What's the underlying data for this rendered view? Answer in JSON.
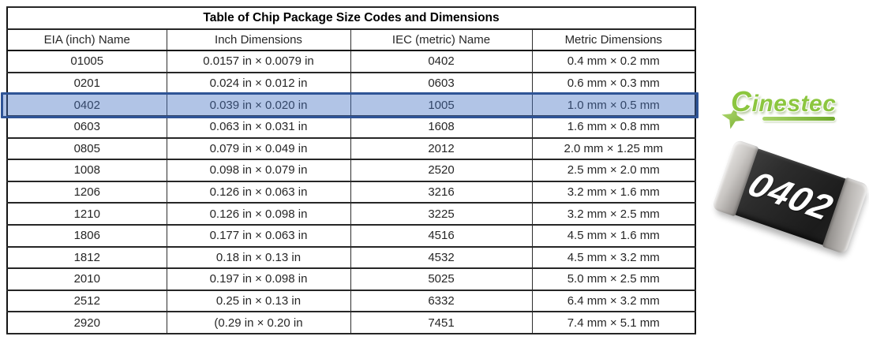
{
  "table": {
    "title": "Table of Chip Package Size Codes and Dimensions",
    "columns": [
      "EIA (inch) Name",
      "Inch Dimensions",
      "IEC (metric) Name",
      "Metric Dimensions"
    ],
    "rows": [
      [
        "01005",
        "0.0157 in × 0.0079 in",
        "0402",
        "0.4 mm × 0.2 mm"
      ],
      [
        "0201",
        "0.024 in × 0.012 in",
        "0603",
        "0.6 mm × 0.3 mm"
      ],
      [
        "0402",
        "0.039 in × 0.020 in",
        "1005",
        "1.0 mm × 0.5 mm"
      ],
      [
        "0603",
        "0.063 in × 0.031 in",
        "1608",
        "1.6 mm × 0.8 mm"
      ],
      [
        "0805",
        "0.079 in × 0.049 in",
        "2012",
        "2.0 mm × 1.25 mm"
      ],
      [
        "1008",
        "0.098 in × 0.079 in",
        "2520",
        "2.5 mm × 2.0 mm"
      ],
      [
        "1206",
        "0.126 in × 0.063 in",
        "3216",
        "3.2 mm × 1.6 mm"
      ],
      [
        "1210",
        "0.126 in × 0.098 in",
        "3225",
        "3.2 mm × 2.5 mm"
      ],
      [
        "1806",
        "0.177 in × 0.063 in",
        "4516",
        "4.5 mm × 1.6 mm"
      ],
      [
        "1812",
        "0.18 in × 0.13 in",
        "4532",
        "4.5 mm × 3.2 mm"
      ],
      [
        "2010",
        "0.197 in × 0.098 in",
        "5025",
        "5.0 mm × 2.5 mm"
      ],
      [
        "2512",
        "0.25 in × 0.13 in",
        "6332",
        "6.4 mm × 3.2 mm"
      ],
      [
        "2920",
        "(0.29 in × 0.20 in",
        "7451",
        "7.4 mm × 5.1 mm"
      ]
    ],
    "highlight": {
      "row_index": 2,
      "fill": "#4472c4",
      "fill_rgba": "rgba(68,114,196,0.42)",
      "border": "#2f5496"
    }
  },
  "logo": {
    "text_initial": "C",
    "text_rest": "inestec",
    "color": "#8cc63f"
  },
  "chip_photo": {
    "label": "0402",
    "body_color": "#2b2b2b",
    "cap_color": "#c9c6c3"
  }
}
